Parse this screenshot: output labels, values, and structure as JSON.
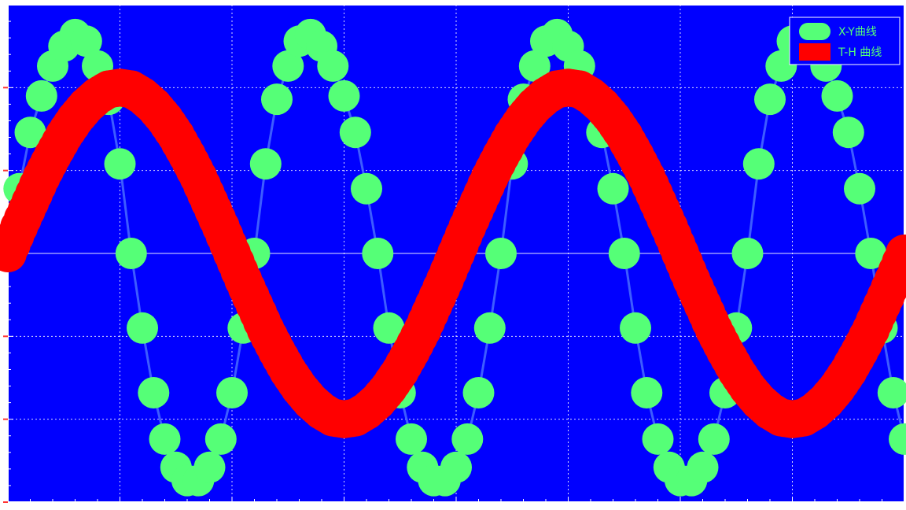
{
  "chart_data": {
    "type": "line",
    "title": "",
    "xlabel": "",
    "ylabel": "",
    "xlim": [
      0,
      8
    ],
    "ylim": [
      -1.5,
      1.5
    ],
    "grid": true,
    "legend_position": "top-right",
    "series": [
      {
        "name": "X-Y曲线",
        "kind": "line-with-markers",
        "color": "#55ff77",
        "line_color": "#4466ff",
        "x": [
          0.0,
          0.1,
          0.2,
          0.3,
          0.4,
          0.5,
          0.6,
          0.7,
          0.8,
          0.9,
          1.0,
          1.1,
          1.2,
          1.3,
          1.4,
          1.5,
          1.6,
          1.7,
          1.8,
          1.9,
          2.0,
          2.1,
          2.2,
          2.3,
          2.4,
          2.5,
          2.6,
          2.7,
          2.8,
          2.9,
          3.0,
          3.1,
          3.2,
          3.3,
          3.4,
          3.5,
          3.6,
          3.7,
          3.8,
          3.9,
          4.0,
          4.1,
          4.2,
          4.3,
          4.4,
          4.5,
          4.6,
          4.7,
          4.8,
          4.9,
          5.0,
          5.1,
          5.2,
          5.3,
          5.4,
          5.5,
          5.6,
          5.7,
          5.8,
          5.9,
          6.0,
          6.1,
          6.2,
          6.3,
          6.4,
          6.5,
          6.6,
          6.7,
          6.8,
          6.9,
          7.0,
          7.1,
          7.2,
          7.3,
          7.4,
          7.5,
          7.6,
          7.7,
          7.8,
          7.9,
          8.0
        ],
        "y": [
          0.0,
          0.39,
          0.73,
          0.95,
          1.13,
          1.25,
          1.32,
          1.28,
          1.13,
          0.93,
          0.54,
          0.0,
          -0.45,
          -0.84,
          -1.12,
          -1.29,
          -1.37,
          -1.37,
          -1.29,
          -1.12,
          -0.84,
          -0.45,
          0.0,
          0.54,
          0.93,
          1.13,
          1.28,
          1.32,
          1.25,
          1.13,
          0.95,
          0.73,
          0.39,
          0.0,
          -0.45,
          -0.84,
          -1.12,
          -1.29,
          -1.37,
          -1.37,
          -1.29,
          -1.12,
          -0.84,
          -0.45,
          0.0,
          0.54,
          0.93,
          1.13,
          1.28,
          1.32,
          1.25,
          1.13,
          0.95,
          0.73,
          0.39,
          0.0,
          -0.45,
          -0.84,
          -1.12,
          -1.29,
          -1.37,
          -1.37,
          -1.29,
          -1.12,
          -0.84,
          -0.45,
          0.0,
          0.54,
          0.93,
          1.13,
          1.28,
          1.32,
          1.25,
          1.13,
          0.95,
          0.73,
          0.39,
          0.0,
          -0.45,
          -0.84,
          -1.12
        ]
      },
      {
        "name": "T-H 曲线",
        "kind": "thick-markers",
        "color": "#ff0000",
        "x": [
          0.0,
          0.1,
          0.2,
          0.3,
          0.4,
          0.5,
          0.6,
          0.7,
          0.8,
          0.9,
          1.0,
          1.1,
          1.2,
          1.3,
          1.4,
          1.5,
          1.6,
          1.7,
          1.8,
          1.9,
          2.0,
          2.1,
          2.2,
          2.3,
          2.4,
          2.5,
          2.6,
          2.7,
          2.8,
          2.9,
          3.0,
          3.1,
          3.2,
          3.3,
          3.4,
          3.5,
          3.6,
          3.7,
          3.8,
          3.9,
          4.0,
          4.1,
          4.2,
          4.3,
          4.4,
          4.5,
          4.6,
          4.7,
          4.8,
          4.9,
          5.0,
          5.1,
          5.2,
          5.3,
          5.4,
          5.5,
          5.6,
          5.7,
          5.8,
          5.9,
          6.0,
          6.1,
          6.2,
          6.3,
          6.4,
          6.5,
          6.6,
          6.7,
          6.8,
          6.9,
          7.0,
          7.1,
          7.2,
          7.3,
          7.4,
          7.5,
          7.6,
          7.7,
          7.8,
          7.9,
          8.0
        ],
        "y": [
          0.0,
          0.16,
          0.31,
          0.46,
          0.59,
          0.71,
          0.81,
          0.89,
          0.95,
          0.99,
          1.0,
          0.99,
          0.95,
          0.89,
          0.81,
          0.71,
          0.59,
          0.46,
          0.31,
          0.16,
          0.0,
          -0.16,
          -0.31,
          -0.46,
          -0.59,
          -0.71,
          -0.81,
          -0.89,
          -0.95,
          -0.99,
          -1.0,
          -0.99,
          -0.95,
          -0.89,
          -0.81,
          -0.71,
          -0.59,
          -0.46,
          -0.31,
          -0.16,
          0.0,
          0.16,
          0.31,
          0.46,
          0.59,
          0.71,
          0.81,
          0.89,
          0.95,
          0.99,
          1.0,
          0.99,
          0.95,
          0.89,
          0.81,
          0.71,
          0.59,
          0.46,
          0.31,
          0.16,
          0.0,
          -0.16,
          -0.31,
          -0.46,
          -0.59,
          -0.71,
          -0.81,
          -0.89,
          -0.95,
          -0.99,
          -1.0,
          -0.99,
          -0.95,
          -0.89,
          -0.81,
          -0.71,
          -0.59,
          -0.46,
          -0.31,
          -0.16,
          0.0
        ]
      }
    ],
    "colors": {
      "plot_background": "#0000ff",
      "grid": "#ffffff",
      "axis": "#ffffff",
      "legend_text": "#55ff77",
      "legend_border": "#ffffff"
    }
  }
}
